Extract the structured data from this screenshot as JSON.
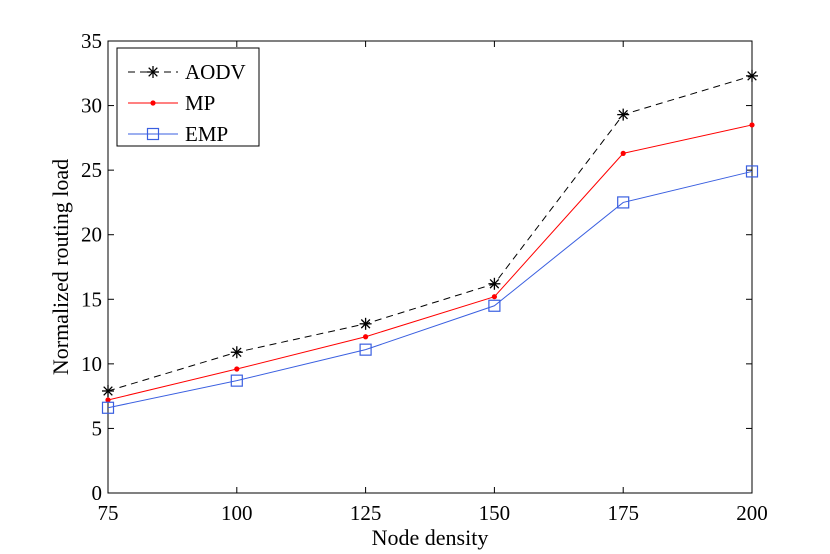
{
  "chart_data": {
    "type": "line",
    "title": "",
    "xlabel": "Node density",
    "ylabel": "Normalized routing load",
    "x": [
      75,
      100,
      125,
      150,
      175,
      200
    ],
    "xticks": [
      75,
      100,
      125,
      150,
      175,
      200
    ],
    "yticks": [
      0,
      5,
      10,
      15,
      20,
      25,
      30,
      35
    ],
    "xlim": [
      75,
      200
    ],
    "ylim": [
      0,
      35
    ],
    "grid": false,
    "legend_position": "top-left",
    "series": [
      {
        "name": "AODV",
        "color": "#000000",
        "line_style": "dashed",
        "marker": "asterisk",
        "values": [
          7.9,
          10.9,
          13.1,
          16.2,
          29.3,
          32.3
        ]
      },
      {
        "name": "MP",
        "color": "#ff0000",
        "line_style": "solid",
        "marker": "dot",
        "values": [
          7.2,
          9.6,
          12.1,
          15.2,
          26.3,
          28.5
        ]
      },
      {
        "name": "EMP",
        "color": "#3a5fe0",
        "line_style": "solid",
        "marker": "square",
        "values": [
          6.6,
          8.7,
          11.1,
          14.5,
          22.5,
          24.9
        ]
      }
    ]
  }
}
